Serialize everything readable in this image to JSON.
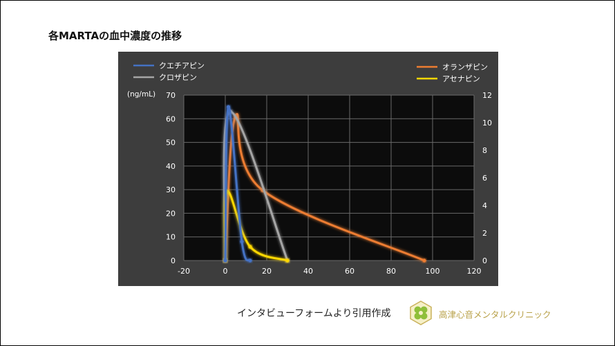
{
  "page": {
    "title": "各MARTAの血中濃度の推移",
    "caption": "インタビューフォームより引用作成",
    "clinic_name": "高津心音メンタルクリニック",
    "logo": "clover-logo"
  },
  "chart_data": {
    "type": "line",
    "title": "",
    "xlabel": "",
    "ylabel": "(ng/mL)",
    "y2label": "",
    "xlim": [
      -20,
      120
    ],
    "ylim": [
      0,
      70
    ],
    "y2lim": [
      0,
      12
    ],
    "x_ticks": [
      -20,
      0,
      20,
      40,
      60,
      80,
      100,
      120
    ],
    "y_ticks": [
      0,
      10,
      20,
      30,
      40,
      50,
      60,
      70
    ],
    "y2_ticks": [
      0,
      2,
      4,
      6,
      8,
      10,
      12
    ],
    "grid": true,
    "background": "#0c0c0c",
    "legend": [
      {
        "position": "top-left",
        "entries": [
          "クエチアピン",
          "クロザピン"
        ]
      },
      {
        "position": "top-right",
        "entries": [
          "オランザピン",
          "アセナピン"
        ]
      }
    ],
    "series": [
      {
        "name": "クエチアピン",
        "axis": "left",
        "color": "#4472c4",
        "x": [
          0,
          1.5,
          8,
          12
        ],
        "y": [
          0,
          65,
          8,
          0
        ]
      },
      {
        "name": "クロザピン",
        "axis": "left",
        "color": "#a5a5a5",
        "x": [
          0,
          2.5,
          30
        ],
        "y": [
          0,
          63,
          0
        ]
      },
      {
        "name": "オランザピン",
        "axis": "right",
        "color": "#ed7d31",
        "x": [
          0,
          5,
          18,
          96
        ],
        "y": [
          0,
          10.5,
          5.1,
          0
        ]
      },
      {
        "name": "アセナピン",
        "axis": "right",
        "color": "#ffd800",
        "x": [
          0,
          1,
          12,
          30
        ],
        "y": [
          0,
          5,
          1,
          0
        ]
      }
    ]
  }
}
